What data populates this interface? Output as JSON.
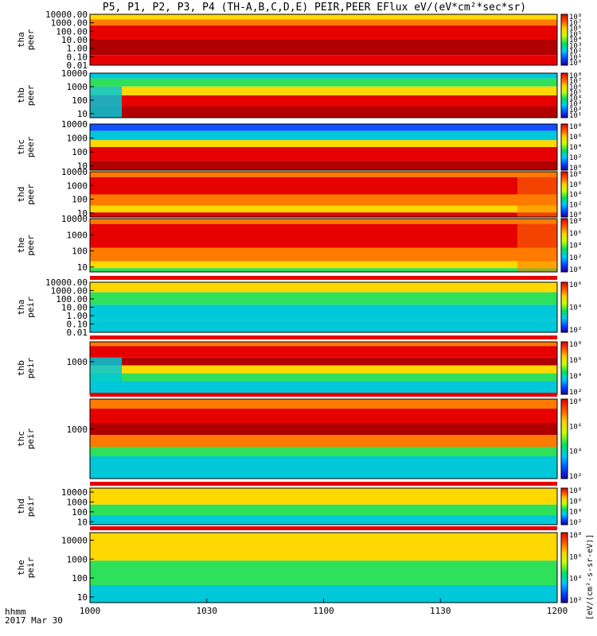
{
  "chart_data": {
    "type": "heatmap",
    "title": "P5, P1, P2, P3, P4 (TH-A,B,C,D,E) PEIR,PEER EFlux eV/(eV*cm²*sec*sr)",
    "x_ticks": [
      "1000",
      "1030",
      "1100",
      "1130",
      "1200"
    ],
    "x_range": [
      "1000",
      "1200"
    ],
    "xlabel_lines": [
      "hhmm",
      "2017 Mar 30"
    ],
    "colorbar_label": "[eV/(cm²-s-sr-eV)]",
    "colorbar_ticks": [
      "10²",
      "10⁴",
      "10⁶"
    ],
    "panels": [
      {
        "probe": "tha",
        "species": "peer",
        "yscale": "log",
        "ylim": [
          0.01,
          10000
        ],
        "y_ticks": [
          "10000.00",
          "1000.00",
          "100.00",
          "10.00",
          "1.00",
          "0.10",
          "0.01"
        ],
        "colorbar_ticks": [
          "10⁸",
          "10⁷",
          "10⁶",
          "10⁵",
          "10⁴",
          "10³",
          "10²",
          "10¹",
          "10⁰"
        ]
      },
      {
        "probe": "thb",
        "species": "peer",
        "yscale": "log",
        "ylim": [
          5,
          10000
        ],
        "y_ticks": [
          "10000",
          "1000",
          "100",
          "10"
        ],
        "colorbar_ticks": [
          "10⁸",
          "10⁷",
          "10⁶",
          "10⁵",
          "10⁴",
          "10³",
          "10²",
          "10¹"
        ]
      },
      {
        "probe": "thc",
        "species": "peer",
        "yscale": "log",
        "ylim": [
          5,
          10000
        ],
        "y_ticks": [
          "10000",
          "1000",
          "100",
          "10"
        ],
        "colorbar_ticks": [
          "10⁸",
          "10⁶",
          "10⁴",
          "10²",
          "10⁰"
        ]
      },
      {
        "probe": "thd",
        "species": "peer",
        "yscale": "log",
        "ylim": [
          5,
          10000
        ],
        "y_ticks": [
          "10000",
          "1000",
          "100",
          "10"
        ],
        "colorbar_ticks": [
          "10⁸",
          "10⁶",
          "10⁴",
          "10²",
          "10⁰"
        ]
      },
      {
        "probe": "the",
        "species": "peer",
        "yscale": "log",
        "ylim": [
          5,
          10000
        ],
        "y_ticks": [
          "10000",
          "1000",
          "100",
          "10"
        ],
        "colorbar_ticks": [
          "10⁸",
          "10⁶",
          "10⁴",
          "10²",
          "10⁰"
        ]
      },
      {
        "probe": "tha",
        "species": "peir",
        "yscale": "log",
        "ylim": [
          0.01,
          10000
        ],
        "y_ticks": [
          "10000.00",
          "1000.00",
          "100.00",
          "10.00",
          "1.00",
          "0.10",
          "0.01"
        ],
        "colorbar_ticks": [
          "10⁶",
          "10⁴",
          "10²"
        ]
      },
      {
        "probe": "thb",
        "species": "peir",
        "yscale": "log",
        "ylim": [
          5,
          25000
        ],
        "y_ticks": [
          "1000"
        ],
        "colorbar_ticks": [
          "10⁸",
          "10⁶",
          "10⁴",
          "10²"
        ]
      },
      {
        "probe": "thc",
        "species": "peir",
        "yscale": "log",
        "ylim": [
          5,
          25000
        ],
        "y_ticks": [
          "1000"
        ],
        "colorbar_ticks": [
          "10⁸",
          "10⁶",
          "10⁴",
          "10²"
        ]
      },
      {
        "probe": "thd",
        "species": "peir",
        "yscale": "log",
        "ylim": [
          5,
          25000
        ],
        "y_ticks": [
          "10000",
          "1000",
          "100",
          "10"
        ],
        "colorbar_ticks": [
          "10⁸",
          "10⁶",
          "10⁴",
          "10²"
        ]
      },
      {
        "probe": "the",
        "species": "peir",
        "yscale": "log",
        "ylim": [
          5,
          25000
        ],
        "y_ticks": [
          "10000",
          "1000",
          "100",
          "10"
        ],
        "colorbar_ticks": [
          "10⁸",
          "10⁶",
          "10⁴",
          "10²"
        ]
      }
    ],
    "colors": {
      "red": "#e60000",
      "darkred": "#b00000",
      "orange": "#ff7a00",
      "yellow": "#ffd800",
      "green": "#2ee05a",
      "cyan": "#00c8d8",
      "blue": "#1050ff"
    }
  }
}
